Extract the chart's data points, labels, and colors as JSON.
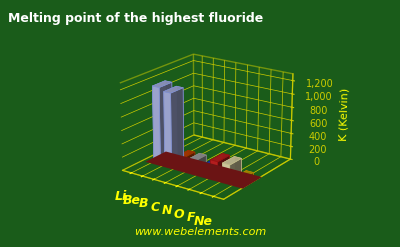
{
  "title": "Melting point of the highest fluoride",
  "ylabel": "K (Kelvin)",
  "website": "www.webelements.com",
  "elements": [
    "Li",
    "Be",
    "B",
    "C",
    "N",
    "O",
    "F",
    "Ne"
  ],
  "values": [
    1118,
    1073,
    130,
    130,
    66,
    220,
    220,
    53
  ],
  "bar_colors": [
    "#b0b8e8",
    "#b0b8e8",
    "#cc4400",
    "#aaaaaa",
    "#2244cc",
    "#cc2222",
    "#e8e0b0",
    "#ccaa00"
  ],
  "bar_edge_colors": [
    "#8090d0",
    "#8090d0",
    "#993300",
    "#888888",
    "#112288",
    "#991111",
    "#c0bb88",
    "#aa8800"
  ],
  "background_color": "#1a5c1a",
  "grid_color": "#cccc00",
  "platform_color": "#8b1a1a",
  "label_color": "#ffff00",
  "title_color": "#ffffff",
  "ylabel_color": "#ffff00",
  "ylim": [
    0,
    1300
  ],
  "yticks": [
    0,
    200,
    400,
    600,
    800,
    1000,
    1200
  ],
  "ytick_labels": [
    "0",
    "200",
    "400",
    "600",
    "800",
    "1,000",
    "1,200"
  ]
}
